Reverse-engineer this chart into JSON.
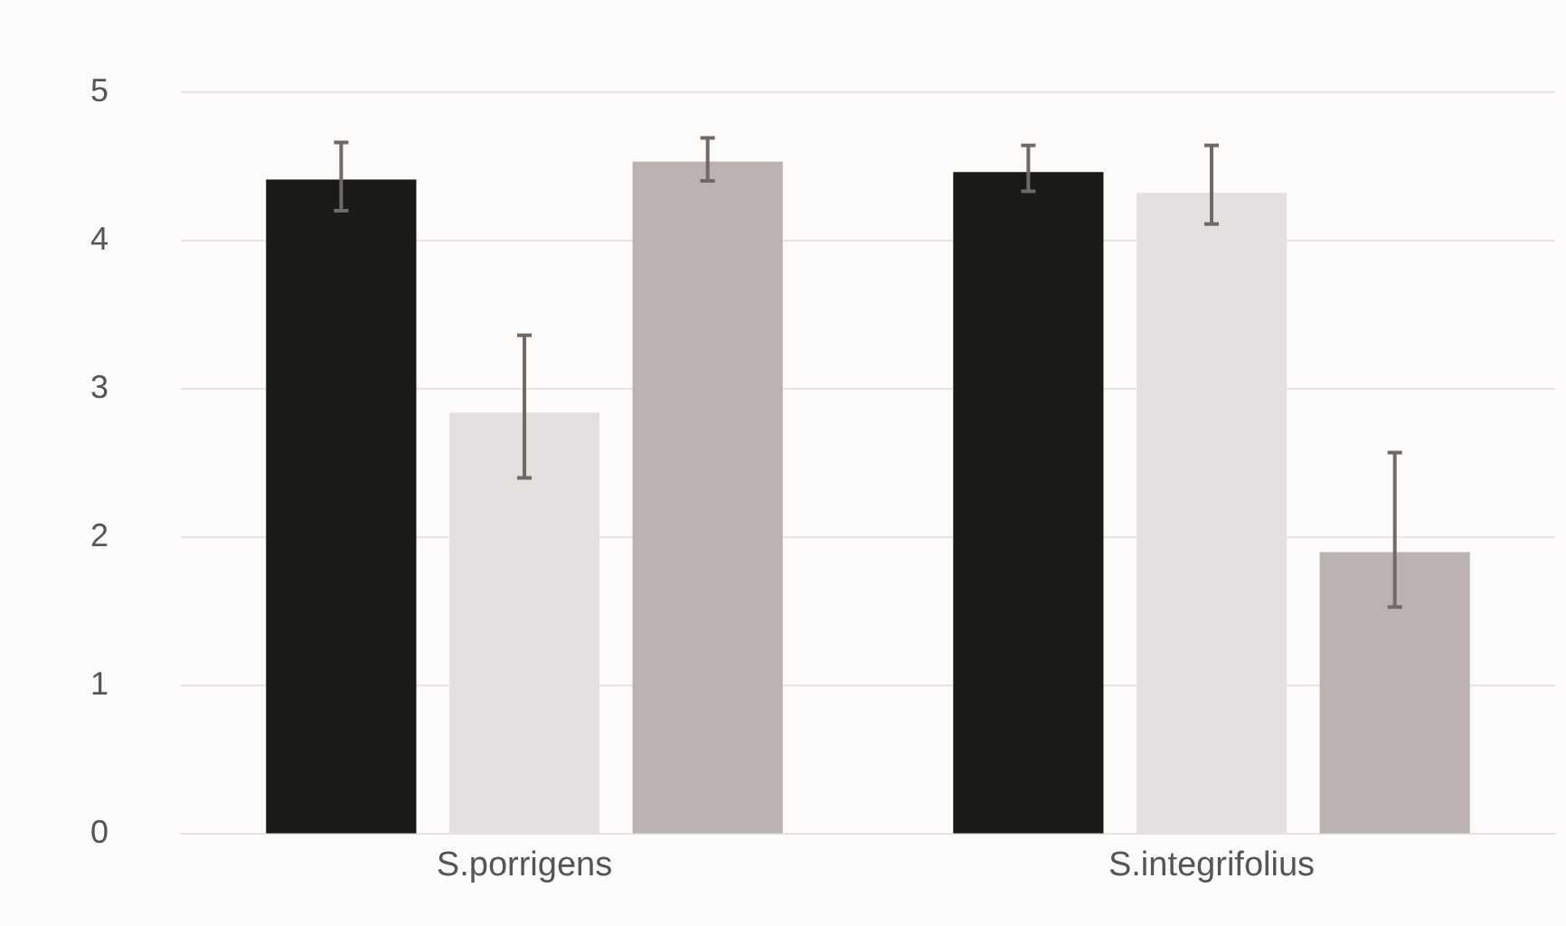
{
  "chart_data": {
    "type": "bar",
    "categories": [
      "S.porrigens",
      "S.integrifolius"
    ],
    "series": [
      {
        "color": "#1a1b17",
        "values": [
          4.41,
          4.46
        ],
        "errors": [
          [
            4.2,
            4.66
          ],
          [
            4.33,
            4.64
          ]
        ]
      },
      {
        "color": "#e3e0df",
        "values": [
          2.84,
          4.32
        ],
        "errors": [
          [
            2.4,
            3.36
          ],
          [
            4.11,
            4.64
          ]
        ]
      },
      {
        "color": "#bab3af",
        "values": [
          4.53,
          1.9
        ],
        "errors": [
          [
            4.4,
            4.69
          ],
          [
            1.53,
            2.57
          ]
        ]
      }
    ],
    "ylim": [
      0,
      5
    ],
    "yticks": [
      0,
      1,
      2,
      3,
      4,
      5
    ],
    "grid": "y",
    "legend": false
  }
}
